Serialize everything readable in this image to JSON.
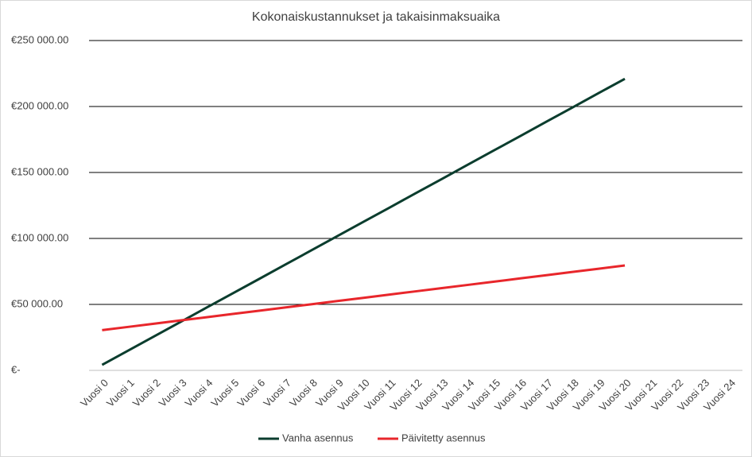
{
  "chart_data": {
    "type": "line",
    "title": "Kokonaiskustannukset ja takaisinmaksuaika",
    "categories": [
      "Vuosi 0",
      "Vuosi 1",
      "Vuosi 2",
      "Vuosi 3",
      "Vuosi 4",
      "Vuosi 5",
      "Vuosi 6",
      "Vuosi 7",
      "Vuosi 8",
      "Vuosi 9",
      "Vuosi 10",
      "Vuosi 11",
      "Vuosi 12",
      "Vuosi 13",
      "Vuosi 14",
      "Vuosi 15",
      "Vuosi 16",
      "Vuosi 17",
      "Vuosi 18",
      "Vuosi 19",
      "Vuosi 20",
      "Vuosi 21",
      "Vuosi 22",
      "Vuosi 23",
      "Vuosi 24"
    ],
    "series": [
      {
        "name": "Vanha asennus",
        "color": "#0b3d2e",
        "values": [
          4200,
          15000,
          25900,
          36700,
          47600,
          58400,
          69200,
          80100,
          90900,
          101800,
          112600,
          123400,
          134300,
          145100,
          156000,
          166800,
          177600,
          188500,
          199300,
          210200,
          221000,
          null,
          null,
          null,
          null
        ]
      },
      {
        "name": "Päivitetty asennus",
        "color": "#e8262b",
        "values": [
          30500,
          32950,
          35400,
          37850,
          40300,
          42750,
          45200,
          47650,
          50100,
          52550,
          55000,
          57450,
          59900,
          62350,
          64800,
          67250,
          69700,
          72150,
          74600,
          77050,
          79500,
          null,
          null,
          null,
          null
        ]
      }
    ],
    "ylim": [
      0,
      250000
    ],
    "yticks": [
      {
        "value": 0,
        "label": "€-"
      },
      {
        "value": 50000,
        "label": "€50 000.00"
      },
      {
        "value": 100000,
        "label": "€100 000.00"
      },
      {
        "value": 150000,
        "label": "€150 000.00"
      },
      {
        "value": 200000,
        "label": "€200 000.00"
      },
      {
        "value": 250000,
        "label": "€250 000.00"
      }
    ],
    "grid": true,
    "legend": "bottom"
  }
}
